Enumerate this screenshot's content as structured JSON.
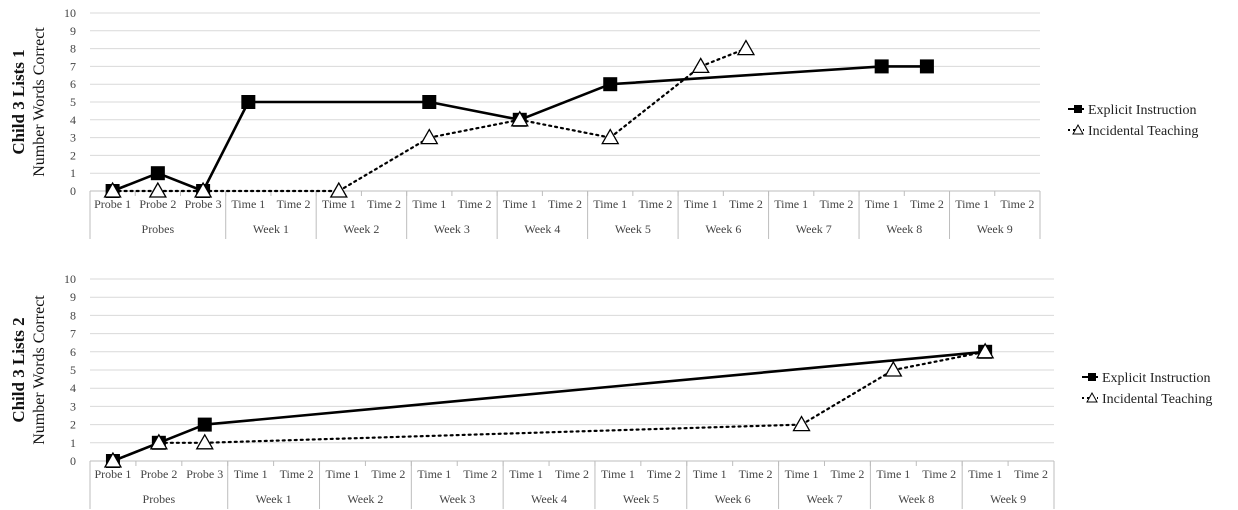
{
  "chart_data": [
    {
      "type": "line",
      "ylabel_title": "Child 3 Lists 1",
      "ylabel": "Number Words Correct",
      "ylim": [
        0,
        10
      ],
      "yticks": [
        "0",
        "1",
        "2",
        "3",
        "4",
        "5",
        "6",
        "7",
        "8",
        "9",
        "10"
      ],
      "x_sub": [
        "Probe 1",
        "Probe 2",
        "Probe 3",
        "Time 1",
        "Time 2",
        "Time 1",
        "Time 2",
        "Time 1",
        "Time 2",
        "Time 1",
        "Time 2",
        "Time 1",
        "Time 2",
        "Time 1",
        "Time 2",
        "Time 1",
        "Time 2",
        "Time 1",
        "Time 2",
        "Time 1",
        "Time 2"
      ],
      "groups": [
        {
          "label": "Probes",
          "size": 3
        },
        {
          "label": "Week 1",
          "size": 2
        },
        {
          "label": "Week 2",
          "size": 2
        },
        {
          "label": "Week 3",
          "size": 2
        },
        {
          "label": "Week 4",
          "size": 2
        },
        {
          "label": "Week 5",
          "size": 2
        },
        {
          "label": "Week 6",
          "size": 2
        },
        {
          "label": "Week 7",
          "size": 2
        },
        {
          "label": "Week 8",
          "size": 2
        },
        {
          "label": "Week 9",
          "size": 2
        }
      ],
      "series": [
        {
          "name": "Explicit Instruction",
          "style": "solid",
          "marker": "square",
          "values": [
            0,
            1,
            0,
            5,
            null,
            null,
            null,
            5,
            null,
            4,
            null,
            6,
            null,
            null,
            null,
            null,
            null,
            7,
            7,
            null,
            null
          ]
        },
        {
          "name": "Incidental Teaching",
          "style": "dotted",
          "marker": "triangle",
          "values": [
            0,
            0,
            0,
            null,
            null,
            0,
            null,
            3,
            null,
            4,
            null,
            3,
            null,
            7,
            8,
            null,
            null,
            null,
            null,
            null,
            null
          ]
        }
      ],
      "legend": "right"
    },
    {
      "type": "line",
      "ylabel_title": "Child 3 Lists 2",
      "ylabel": "Number Words Correct",
      "ylim": [
        0,
        10
      ],
      "yticks": [
        "0",
        "1",
        "2",
        "3",
        "4",
        "5",
        "6",
        "7",
        "8",
        "9",
        "10"
      ],
      "x_sub": [
        "Probe 1",
        "Probe 2",
        "Probe 3",
        "Time 1",
        "Time 2",
        "Time 1",
        "Time 2",
        "Time 1",
        "Time 2",
        "Time 1",
        "Time 2",
        "Time 1",
        "Time 2",
        "Time 1",
        "Time 2",
        "Time 1",
        "Time 2",
        "Time 1",
        "Time 2",
        "Time 1",
        "Time 2"
      ],
      "groups": [
        {
          "label": "Probes",
          "size": 3
        },
        {
          "label": "Week 1",
          "size": 2
        },
        {
          "label": "Week 2",
          "size": 2
        },
        {
          "label": "Week 3",
          "size": 2
        },
        {
          "label": "Week 4",
          "size": 2
        },
        {
          "label": "Week 5",
          "size": 2
        },
        {
          "label": "Week 6",
          "size": 2
        },
        {
          "label": "Week 7",
          "size": 2
        },
        {
          "label": "Week 8",
          "size": 2
        },
        {
          "label": "Week 9",
          "size": 2
        }
      ],
      "series": [
        {
          "name": "Explicit Instruction",
          "style": "solid",
          "marker": "square",
          "values": [
            0,
            1,
            2,
            null,
            null,
            null,
            null,
            null,
            null,
            null,
            null,
            null,
            null,
            null,
            null,
            null,
            null,
            null,
            null,
            6,
            null
          ]
        },
        {
          "name": "Incidental Teaching",
          "style": "dotted",
          "marker": "triangle",
          "values": [
            0,
            1,
            1,
            null,
            null,
            null,
            null,
            null,
            null,
            null,
            null,
            null,
            null,
            null,
            null,
            2,
            null,
            5,
            null,
            6,
            null
          ]
        }
      ],
      "legend": "right"
    }
  ]
}
